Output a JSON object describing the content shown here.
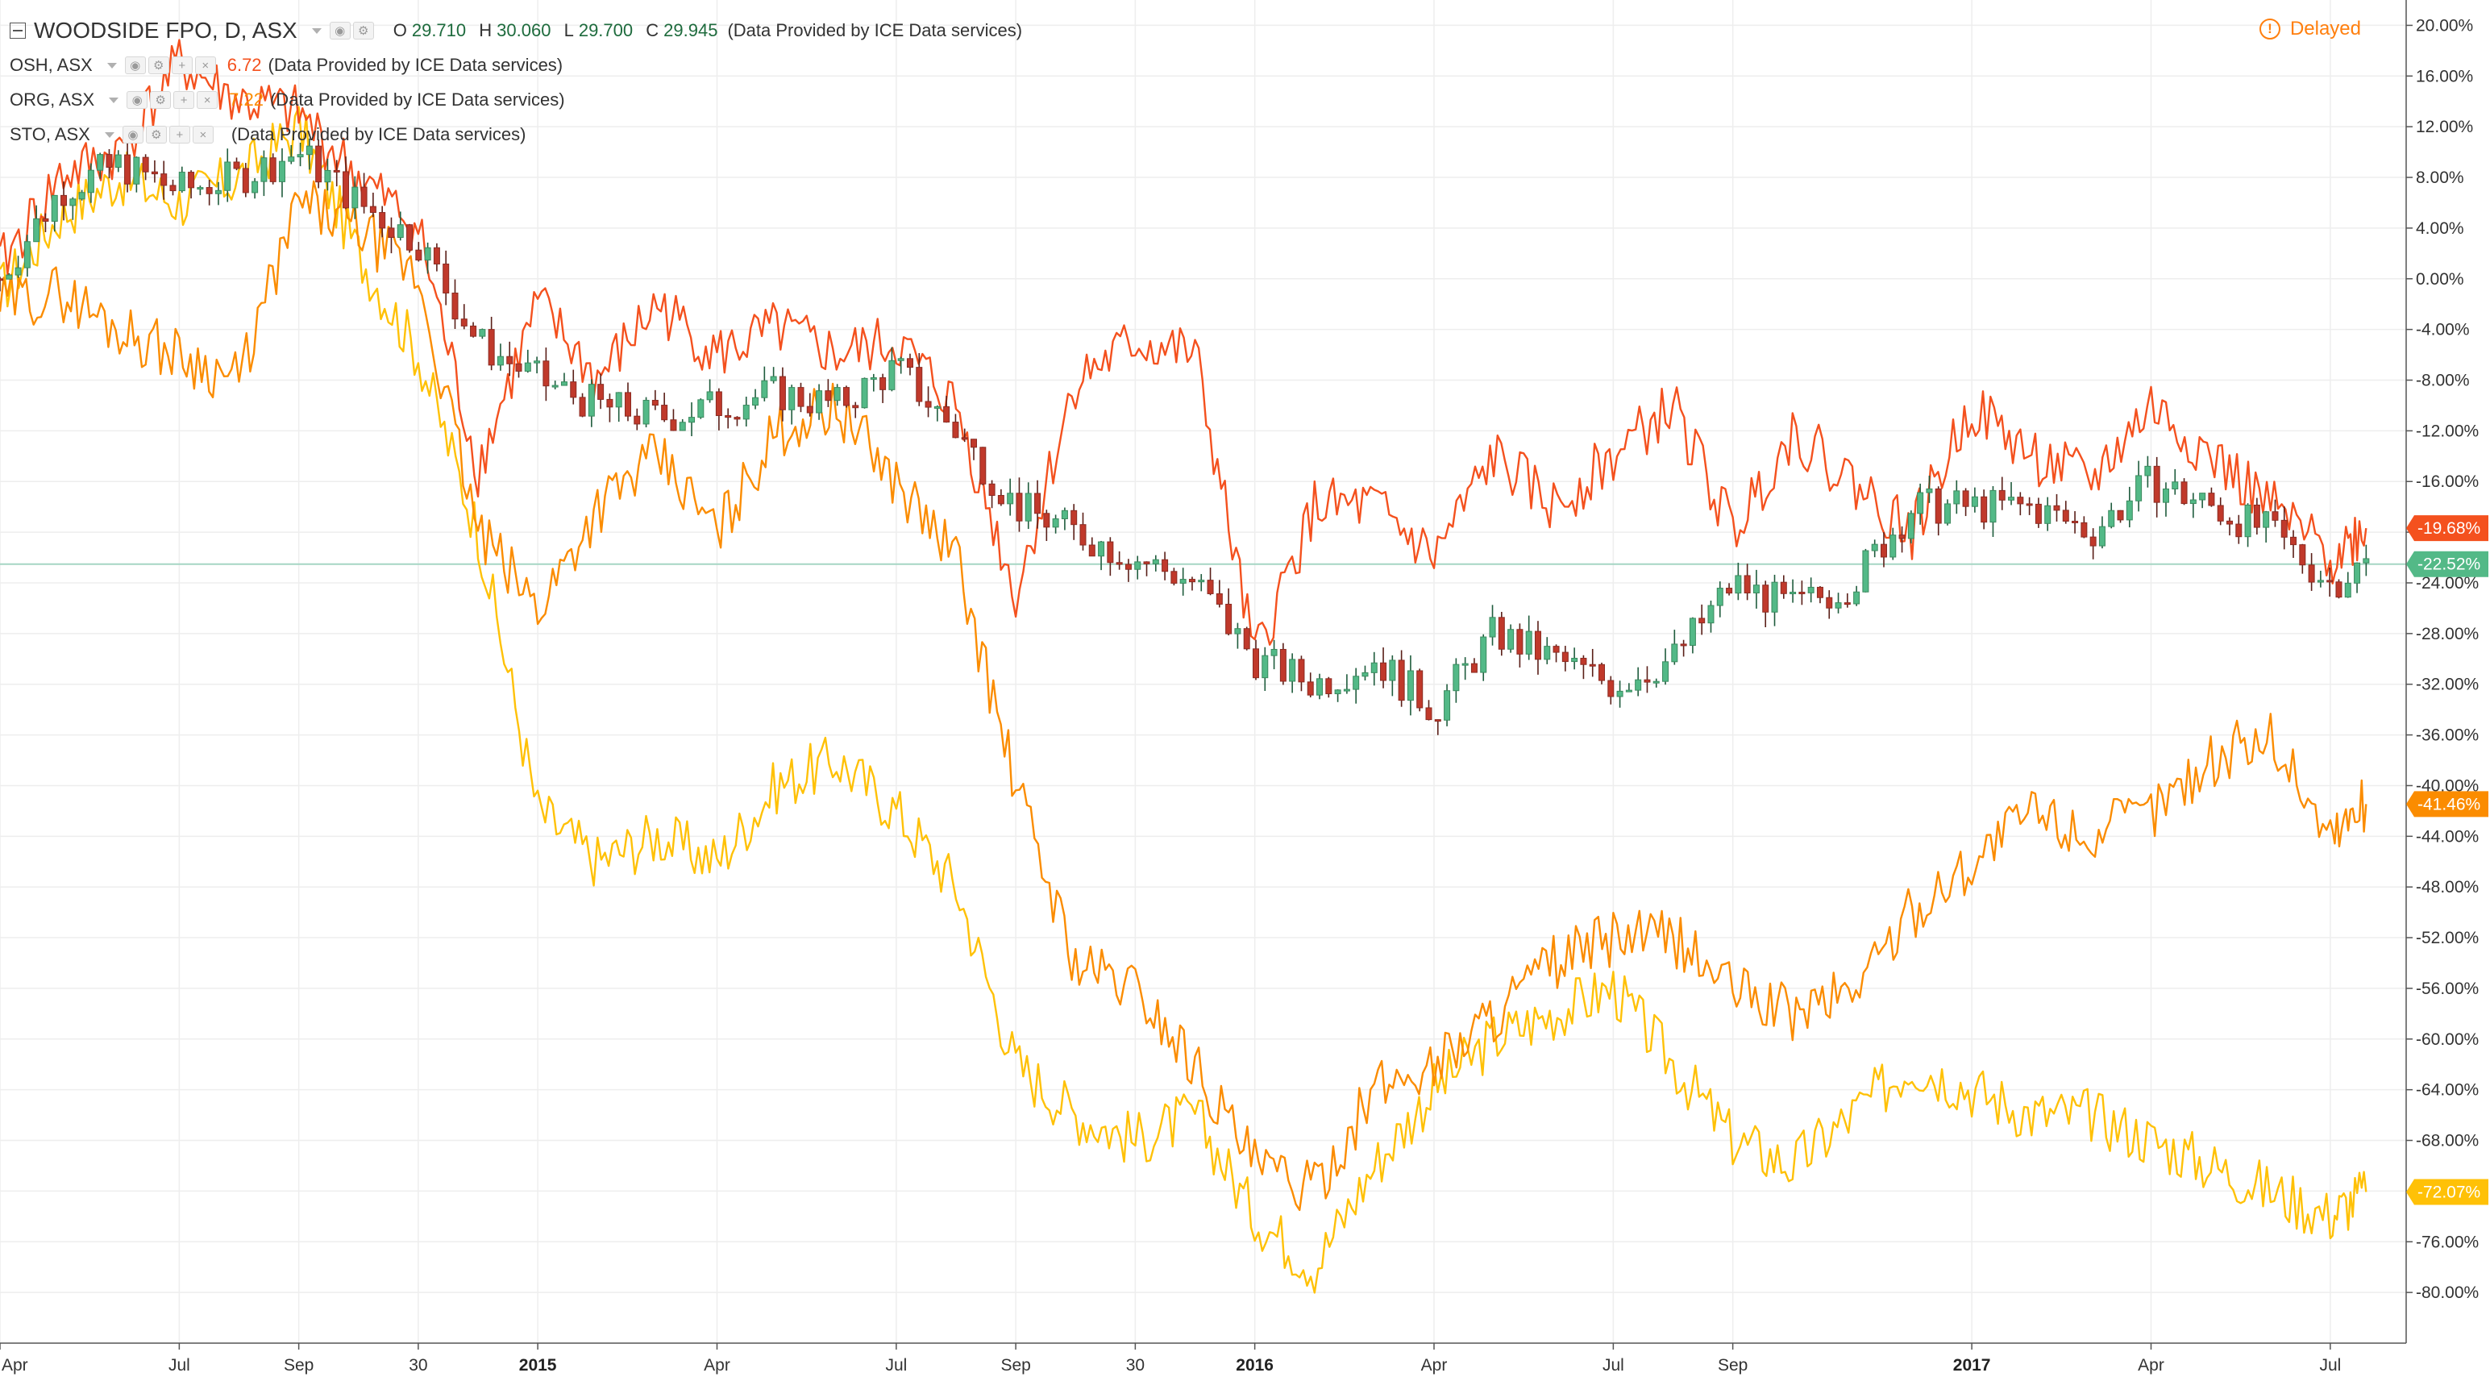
{
  "main_series": {
    "title": "WOODSIDE FPO, D, ASX",
    "ohlc": [
      {
        "k": "O",
        "v": "29.710"
      },
      {
        "k": "H",
        "v": "30.060"
      },
      {
        "k": "L",
        "v": "29.700"
      },
      {
        "k": "C",
        "v": "29.945"
      }
    ],
    "source": "(Data Provided by ICE Data services)"
  },
  "compare": [
    {
      "name": "OSH, ASX",
      "value": "6.72",
      "color": "#f4511e",
      "source": "(Data Provided by ICE Data services)"
    },
    {
      "name": "ORG, ASX",
      "value": "7.22",
      "color": "#fb8c00",
      "source": "(Data Provided by ICE Data services)"
    },
    {
      "name": "STO, ASX",
      "value": "",
      "color": "#fbc02d",
      "source": "(Data Provided by ICE Data services)"
    }
  ],
  "status": {
    "delayed": "Delayed",
    "icon": "exclamation-circle-icon",
    "color": "#ff7f0e"
  },
  "colors": {
    "up": "#53b987",
    "up_body": "#3a8a5e",
    "down": "#c0392b",
    "down_body": "#8b2b22",
    "osh": "#f4511e",
    "org": "#fb8c00",
    "sto": "#ffc107",
    "baseline": "#a5d6c4"
  },
  "chart_data": {
    "type": "line",
    "scale": "percent",
    "ylim": [
      -84,
      22
    ],
    "y_ticks": [
      "20.00%",
      "16.00%",
      "12.00%",
      "8.00%",
      "4.00%",
      "0.00%",
      "-4.00%",
      "-8.00%",
      "-12.00%",
      "-16.00%",
      "-20.00%",
      "-24.00%",
      "-28.00%",
      "-32.00%",
      "-36.00%",
      "-40.00%",
      "-44.00%",
      "-48.00%",
      "-52.00%",
      "-56.00%",
      "-60.00%",
      "-64.00%",
      "-68.00%",
      "-72.00%",
      "-76.00%",
      "-80.00%"
    ],
    "x_ticks": [
      {
        "label": "Apr",
        "x": 0.0,
        "bold": false
      },
      {
        "label": "Jul",
        "x": 3.0,
        "bold": false
      },
      {
        "label": "Sep",
        "x": 5.0,
        "bold": false
      },
      {
        "label": "30",
        "x": 7.0,
        "bold": false
      },
      {
        "label": "2015",
        "x": 9.0,
        "bold": true
      },
      {
        "label": "Apr",
        "x": 12.0,
        "bold": false
      },
      {
        "label": "Jul",
        "x": 15.0,
        "bold": false
      },
      {
        "label": "Sep",
        "x": 17.0,
        "bold": false
      },
      {
        "label": "30",
        "x": 19.0,
        "bold": false
      },
      {
        "label": "2016",
        "x": 21.0,
        "bold": true
      },
      {
        "label": "Apr",
        "x": 24.0,
        "bold": false
      },
      {
        "label": "Jul",
        "x": 27.0,
        "bold": false
      },
      {
        "label": "Sep",
        "x": 29.0,
        "bold": false
      },
      {
        "label": "2017",
        "x": 33.0,
        "bold": true
      },
      {
        "label": "Apr",
        "x": 36.0,
        "bold": false
      },
      {
        "label": "Jul",
        "x": 39.0,
        "bold": false
      }
    ],
    "xlim": [
      0,
      40
    ],
    "last_value_tags": [
      {
        "series": "OSH, ASX",
        "label": "-19.68%",
        "value": -19.68,
        "color": "#f4511e"
      },
      {
        "series": "WOODSIDE FPO, D, ASX",
        "label": "-22.52%",
        "value": -22.52,
        "color": "#53b987"
      },
      {
        "series": "ORG, ASX",
        "label": "-41.46%",
        "value": -41.46,
        "color": "#fb8c00"
      },
      {
        "series": "STO, ASX",
        "label": "-72.07%",
        "value": -72.07,
        "color": "#ffc107"
      }
    ],
    "baseline_value": -22.52,
    "series": [
      {
        "name": "OSH, ASX",
        "color": "#f4511e",
        "x": [
          0,
          1,
          2,
          3,
          4,
          5,
          6,
          7,
          8,
          9,
          10,
          11,
          12,
          13,
          14,
          15,
          16,
          17,
          18,
          19,
          20,
          21,
          22,
          23,
          24,
          25,
          26,
          27,
          28,
          29,
          30,
          31,
          32,
          33,
          34,
          35,
          36,
          37,
          38,
          39,
          39.6
        ],
        "y": [
          1,
          8,
          10,
          17,
          14,
          13,
          8,
          4,
          -15,
          -2,
          -8,
          -2,
          -6,
          -4,
          -6,
          -5,
          -10,
          -25,
          -8,
          -5,
          -6,
          -30,
          -18,
          -18,
          -22,
          -14,
          -18,
          -14,
          -10,
          -20,
          -12,
          -16,
          -20,
          -10,
          -14,
          -16,
          -10,
          -14,
          -18,
          -22,
          -19.68
        ]
      },
      {
        "name": "WOODSIDE FPO, D, ASX",
        "color": "#53b987",
        "x": [
          0,
          1,
          2,
          3,
          4,
          5,
          6,
          7,
          8,
          9,
          10,
          11,
          12,
          13,
          14,
          15,
          16,
          17,
          18,
          19,
          20,
          21,
          22,
          23,
          24,
          25,
          26,
          27,
          28,
          29,
          30,
          31,
          32,
          33,
          34,
          35,
          36,
          37,
          38,
          39,
          39.6
        ],
        "y": [
          0,
          7,
          9,
          7,
          8,
          10,
          6,
          3,
          -5,
          -8,
          -10,
          -11,
          -10,
          -9,
          -10,
          -7,
          -12,
          -18,
          -20,
          -22,
          -24,
          -30,
          -32,
          -30,
          -34,
          -28,
          -30,
          -32,
          -30,
          -24,
          -26,
          -24,
          -18,
          -18,
          -18,
          -20,
          -16,
          -18,
          -20,
          -24,
          -22.52
        ]
      },
      {
        "name": "ORG, ASX",
        "color": "#fb8c00",
        "x": [
          0,
          1,
          2,
          3,
          4,
          5,
          6,
          7,
          8,
          9,
          10,
          11,
          12,
          13,
          14,
          15,
          16,
          17,
          18,
          19,
          20,
          21,
          22,
          23,
          24,
          25,
          26,
          27,
          28,
          29,
          30,
          31,
          32,
          33,
          34,
          35,
          36,
          37,
          38,
          39,
          39.6
        ],
        "y": [
          -2,
          -1,
          -4,
          -6,
          -8,
          6,
          4,
          0,
          -20,
          -26,
          -18,
          -14,
          -20,
          -12,
          -10,
          -16,
          -22,
          -40,
          -54,
          -56,
          -62,
          -70,
          -72,
          -64,
          -62,
          -58,
          -54,
          -52,
          -52,
          -56,
          -58,
          -56,
          -50,
          -46,
          -42,
          -44,
          -42,
          -38,
          -36,
          -44,
          -41.46
        ]
      },
      {
        "name": "STO, ASX",
        "color": "#ffc107",
        "x": [
          0,
          1,
          2,
          3,
          4,
          5,
          6,
          7,
          8,
          9,
          10,
          11,
          12,
          13,
          14,
          15,
          16,
          17,
          18,
          19,
          20,
          21,
          22,
          23,
          24,
          25,
          26,
          27,
          28,
          29,
          30,
          31,
          32,
          33,
          34,
          35,
          36,
          37,
          38,
          39,
          39.6
        ],
        "y": [
          -1,
          5,
          8,
          6,
          8,
          12,
          2,
          -6,
          -20,
          -42,
          -46,
          -44,
          -46,
          -40,
          -38,
          -42,
          -48,
          -62,
          -66,
          -68,
          -66,
          -74,
          -78,
          -70,
          -64,
          -60,
          -58,
          -56,
          -62,
          -68,
          -70,
          -66,
          -62,
          -64,
          -66,
          -66,
          -68,
          -70,
          -72,
          -74,
          -72.07
        ]
      }
    ]
  }
}
